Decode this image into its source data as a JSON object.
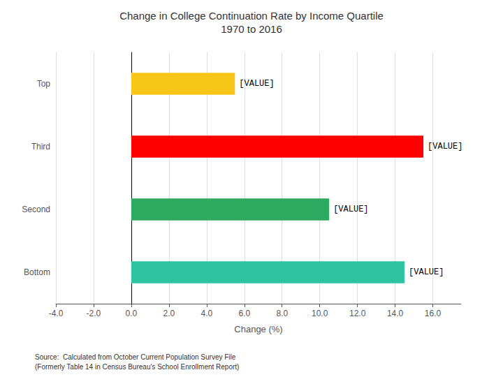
{
  "chart_data": {
    "type": "bar",
    "orientation": "horizontal",
    "title": "Change in College Continuation Rate by Income Quartile",
    "subtitle": "1970 to 2016",
    "categories": [
      "Top",
      "Third",
      "Second",
      "Bottom"
    ],
    "values": [
      5.5,
      15.5,
      10.5,
      14.5
    ],
    "colors": [
      "#F5C518",
      "#FF0000",
      "#2EAA60",
      "#2EC4A0"
    ],
    "data_labels": true,
    "value_labels": [
      "[VALUE]",
      "[VALUE]",
      "[VALUE]",
      "[VALUE]"
    ],
    "xlabel": "Change (%)",
    "xlim": [
      -4.0,
      17.5
    ],
    "xticks": [
      {
        "value": -4.0,
        "label": "-4.0"
      },
      {
        "value": -2.0,
        "label": "-2.0"
      },
      {
        "value": 0.0,
        "label": "0.0"
      },
      {
        "value": 2.0,
        "label": "2.0"
      },
      {
        "value": 4.0,
        "label": "4.0"
      },
      {
        "value": 6.0,
        "label": "6.0"
      },
      {
        "value": 8.0,
        "label": "8.0"
      },
      {
        "value": 10.0,
        "label": "10.0"
      },
      {
        "value": 12.0,
        "label": "12.0"
      },
      {
        "value": 14.0,
        "label": "14.0"
      },
      {
        "value": 16.0,
        "label": "16.0"
      }
    ],
    "grid": true,
    "annotations": [
      "Source:  Calculated from October Current Population Survey File\n(Formerly Table 14 in Census Bureau's School Enrollment Report)"
    ]
  }
}
